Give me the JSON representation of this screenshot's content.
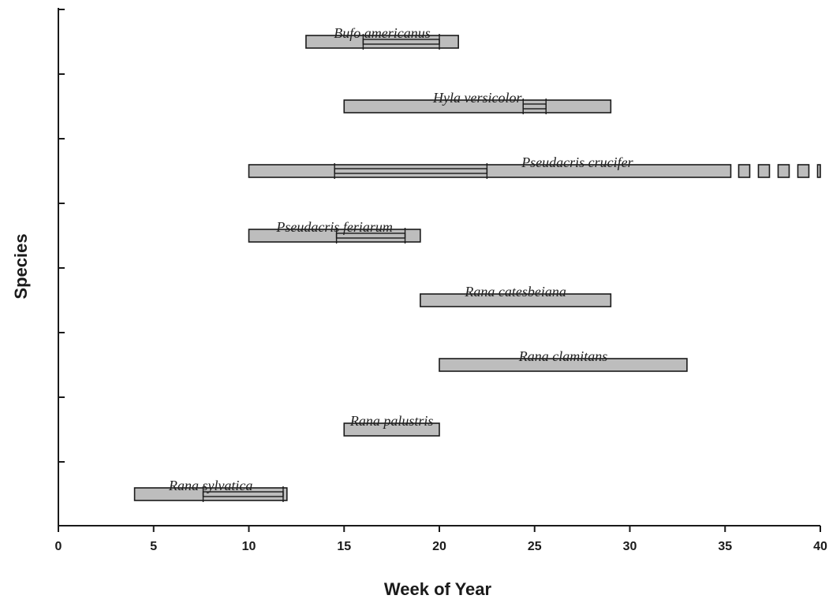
{
  "chart_data": {
    "type": "range-bar",
    "xlabel": "Week of Year",
    "ylabel": "Species",
    "xlim": [
      0,
      40
    ],
    "x_ticks": [
      0,
      5,
      10,
      15,
      20,
      25,
      30,
      35,
      40
    ],
    "grid": false,
    "series": [
      {
        "name": "Bufo americanus",
        "start": 13,
        "end": 21,
        "peak_start": 16,
        "peak_end": 20
      },
      {
        "name": "Hyla versicolor",
        "start": 15,
        "end": 29,
        "peak_start": 24.4,
        "peak_end": 25.6
      },
      {
        "name": "Pseudacris  crucifer",
        "start": 10,
        "end": 35.3,
        "extended_end": 40,
        "peak_start": 14.5,
        "peak_end": 22.5
      },
      {
        "name": "Pseudacris feriarum",
        "start": 10,
        "end": 19,
        "peak_start": 14.6,
        "peak_end": 18.2
      },
      {
        "name": "Rana catesbeiana",
        "start": 19,
        "end": 29
      },
      {
        "name": "Rana clamitans",
        "start": 20,
        "end": 33
      },
      {
        "name": "Rana palustris",
        "start": 15,
        "end": 20
      },
      {
        "name": "Rana sylvatica",
        "start": 4,
        "end": 12,
        "peak_start": 7.6,
        "peak_end": 11.8
      }
    ]
  }
}
